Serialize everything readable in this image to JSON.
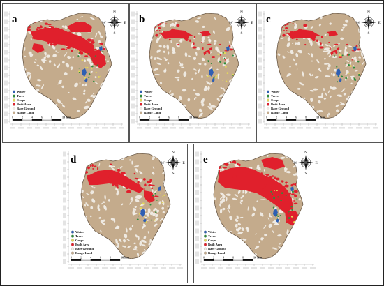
{
  "panels": [
    {
      "id": "a",
      "label": "a",
      "built": "high"
    },
    {
      "id": "b",
      "label": "b",
      "built": "low"
    },
    {
      "id": "c",
      "label": "c",
      "built": "low"
    },
    {
      "id": "d",
      "label": "d",
      "built": "mid"
    },
    {
      "id": "e",
      "label": "e",
      "built": "highest"
    }
  ],
  "legend": [
    {
      "label": "Water",
      "color": "#2f5fb3",
      "shape": "dot"
    },
    {
      "label": "Trees",
      "color": "#2e8b3c",
      "shape": "dot"
    },
    {
      "label": "Crops",
      "color": "#e3d85a",
      "shape": "dot"
    },
    {
      "label": "Built Area",
      "color": "#e0202c",
      "shape": "dot"
    },
    {
      "label": "Bare Ground",
      "color": "#f0ece6",
      "shape": "dot"
    },
    {
      "label": "Range Land",
      "color": "#c4ab8c",
      "shape": "dot"
    }
  ],
  "scale_bar": {
    "ticks": [
      "0",
      "2",
      "4",
      "6",
      "8"
    ],
    "end_label": "10 Km"
  },
  "compass": {
    "n": "N",
    "s": "S",
    "e": "E",
    "w": "W"
  },
  "colors": {
    "range_land": "#c4ab8c",
    "bare_ground": "#f0ece6",
    "built_area": "#e0202c",
    "water": "#2f5fb3",
    "trees": "#2e8b3c",
    "crops": "#e3d85a"
  }
}
